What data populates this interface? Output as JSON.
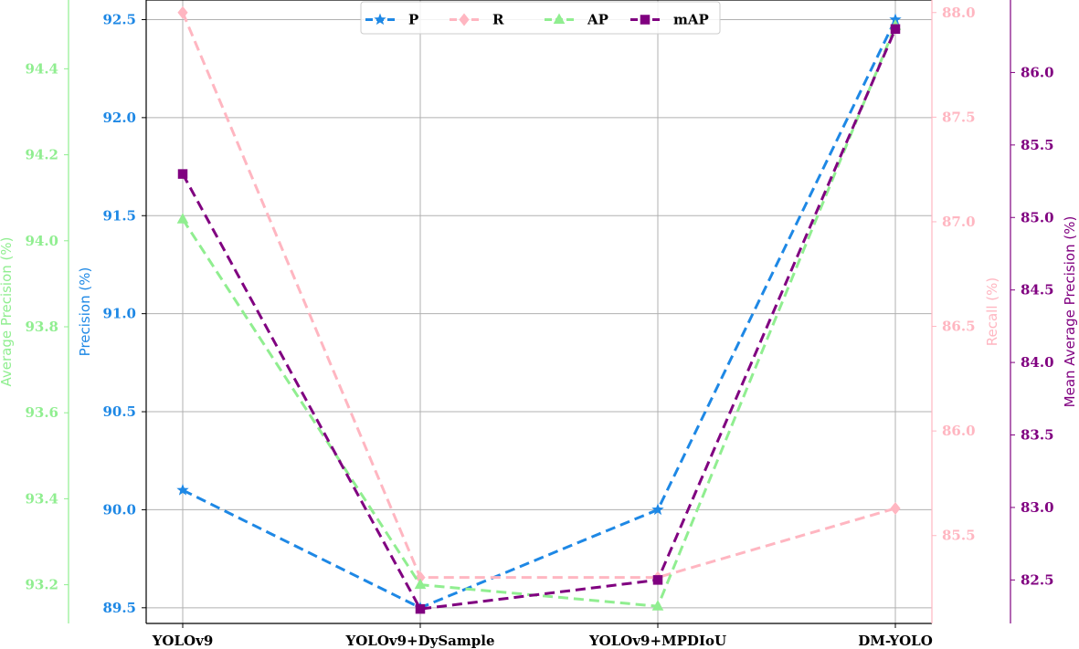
{
  "chart_data": {
    "type": "line",
    "categories": [
      "YOLOv9",
      "YOLOv9+DySample",
      "YOLOv9+MPDIoU",
      "DM-YOLO"
    ],
    "grid": true,
    "legend": "top-center",
    "axes": {
      "P": {
        "label": "Precision (%)",
        "ylim": [
          89.42,
          92.6
        ],
        "ticks": [
          89.5,
          90.0,
          90.5,
          91.0,
          91.5,
          92.0,
          92.5
        ],
        "decimals": 1,
        "color": "#1e88e5"
      },
      "R": {
        "label": "Recall (%)",
        "ylim": [
          85.08,
          88.06
        ],
        "ticks": [
          85.5,
          86.0,
          86.5,
          87.0,
          87.5,
          88.0
        ],
        "decimals": 1,
        "color": "#ffb6c1"
      },
      "AP": {
        "label": "Average Precision (%)",
        "ylim": [
          93.11,
          94.56
        ],
        "ticks": [
          93.2,
          93.4,
          93.6,
          93.8,
          94.0,
          94.2,
          94.4
        ],
        "decimals": 1,
        "color": "#90ee90"
      },
      "mAP": {
        "label": "Mean Average Precision (%)",
        "ylim": [
          82.2,
          86.5
        ],
        "ticks": [
          82.5,
          83.0,
          83.5,
          84.0,
          84.5,
          85.0,
          85.5,
          86.0
        ],
        "decimals": 1,
        "color": "#800080"
      }
    },
    "series": [
      {
        "name": "P",
        "axis": "P",
        "values": [
          90.1,
          89.5,
          90.0,
          92.5
        ],
        "marker": "star",
        "color": "#1e88e5"
      },
      {
        "name": "R",
        "axis": "R",
        "values": [
          88.0,
          85.3,
          85.3,
          85.63
        ],
        "marker": "diamond",
        "color": "#ffb6c1"
      },
      {
        "name": "AP",
        "axis": "AP",
        "values": [
          94.05,
          93.2,
          93.15,
          94.5
        ],
        "marker": "triangle",
        "color": "#90ee90"
      },
      {
        "name": "mAP",
        "axis": "mAP",
        "values": [
          85.3,
          82.3,
          82.5,
          86.3
        ],
        "marker": "square",
        "color": "#800080"
      }
    ]
  }
}
